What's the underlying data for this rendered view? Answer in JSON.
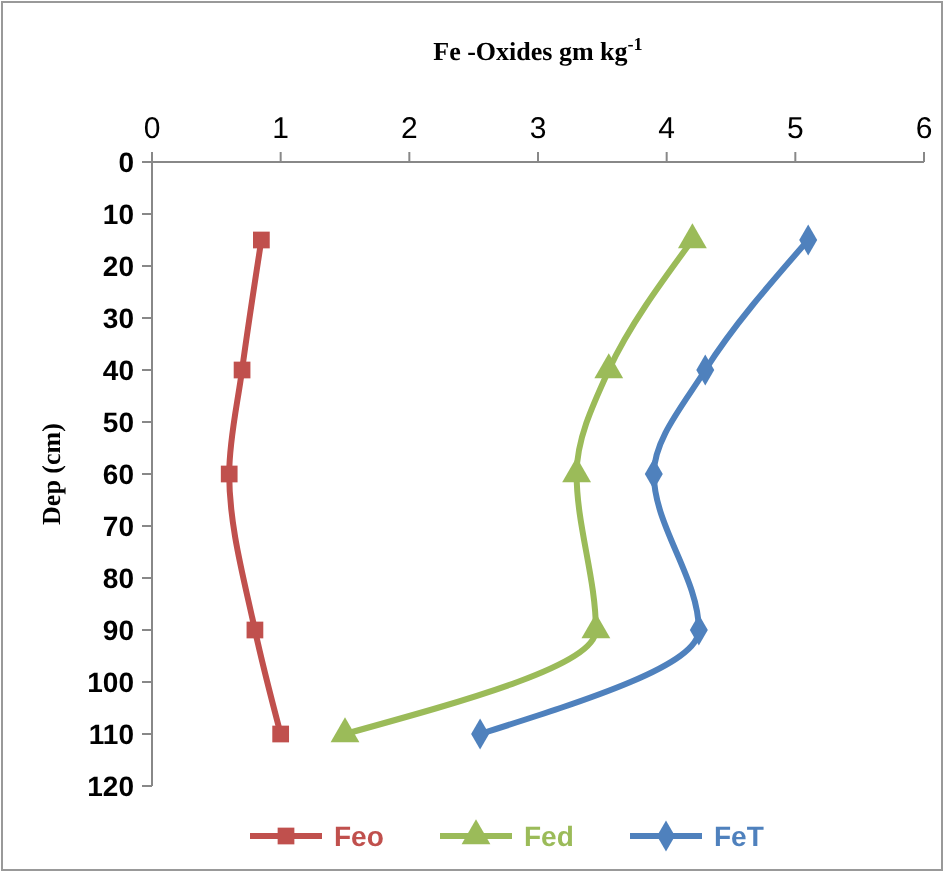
{
  "chart_data": {
    "type": "line",
    "title": "Fe -Oxides gm kg$^{-1}$",
    "ylabel": "Dep (cm)",
    "xlim": [
      0,
      6
    ],
    "xticks": [
      0,
      1,
      2,
      3,
      4,
      5,
      6
    ],
    "ylim": [
      120,
      0
    ],
    "yticks": [
      0,
      10,
      20,
      30,
      40,
      50,
      60,
      70,
      80,
      90,
      100,
      110,
      120
    ],
    "legend": "bottom",
    "grid": false,
    "series": [
      {
        "name": "Feo",
        "color": "#c0504d",
        "marker": "square",
        "x": [
          0.85,
          0.7,
          0.6,
          0.8,
          1.0
        ],
        "values": [
          15,
          40,
          60,
          90,
          110
        ]
      },
      {
        "name": "Fed",
        "color": "#9bbb59",
        "marker": "triangle",
        "x": [
          4.2,
          3.55,
          3.3,
          3.45,
          1.5
        ],
        "values": [
          15,
          40,
          60,
          90,
          110
        ]
      },
      {
        "name": "FeT",
        "color": "#4f81bd",
        "marker": "diamond",
        "x": [
          5.1,
          4.3,
          3.9,
          4.25,
          2.55
        ],
        "values": [
          15,
          40,
          60,
          90,
          110
        ]
      }
    ]
  }
}
